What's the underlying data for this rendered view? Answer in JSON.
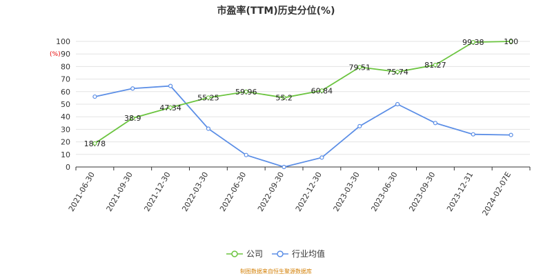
{
  "chart_data": {
    "type": "line",
    "title": "市盈率(TTM)历史分位(%)",
    "ylabel": "(%)",
    "ylim": [
      0,
      100
    ],
    "yticks": [
      0,
      10,
      20,
      30,
      40,
      50,
      60,
      70,
      80,
      90,
      100
    ],
    "categories": [
      "2021-06-30",
      "2021-09-30",
      "2021-12-30",
      "2022-03-30",
      "2022-06-30",
      "2022-09-30",
      "2022-12-30",
      "2023-03-30",
      "2023-06-30",
      "2023-09-30",
      "2023-12-31",
      "2024-02-07E"
    ],
    "series": [
      {
        "name": "公司",
        "color": "#6bc43f",
        "values": [
          18.78,
          38.9,
          47.34,
          55.25,
          59.96,
          55.2,
          60.84,
          79.51,
          75.74,
          81.27,
          99.38,
          100
        ],
        "labels": [
          "18.78",
          "38.9",
          "47.34",
          "55.25",
          "59.96",
          "55.2",
          "60.84",
          "79.51",
          "75.74",
          "81.27",
          "99.38",
          "100"
        ]
      },
      {
        "name": "行业均值",
        "color": "#5b8ee6",
        "values": [
          56,
          62.5,
          64.5,
          30.5,
          9.5,
          0,
          7.5,
          32.5,
          50,
          35,
          26,
          25.5
        ]
      }
    ],
    "grid": true,
    "legend_position": "bottom"
  },
  "source_note": "制图数据来自恒生聚源数据库"
}
